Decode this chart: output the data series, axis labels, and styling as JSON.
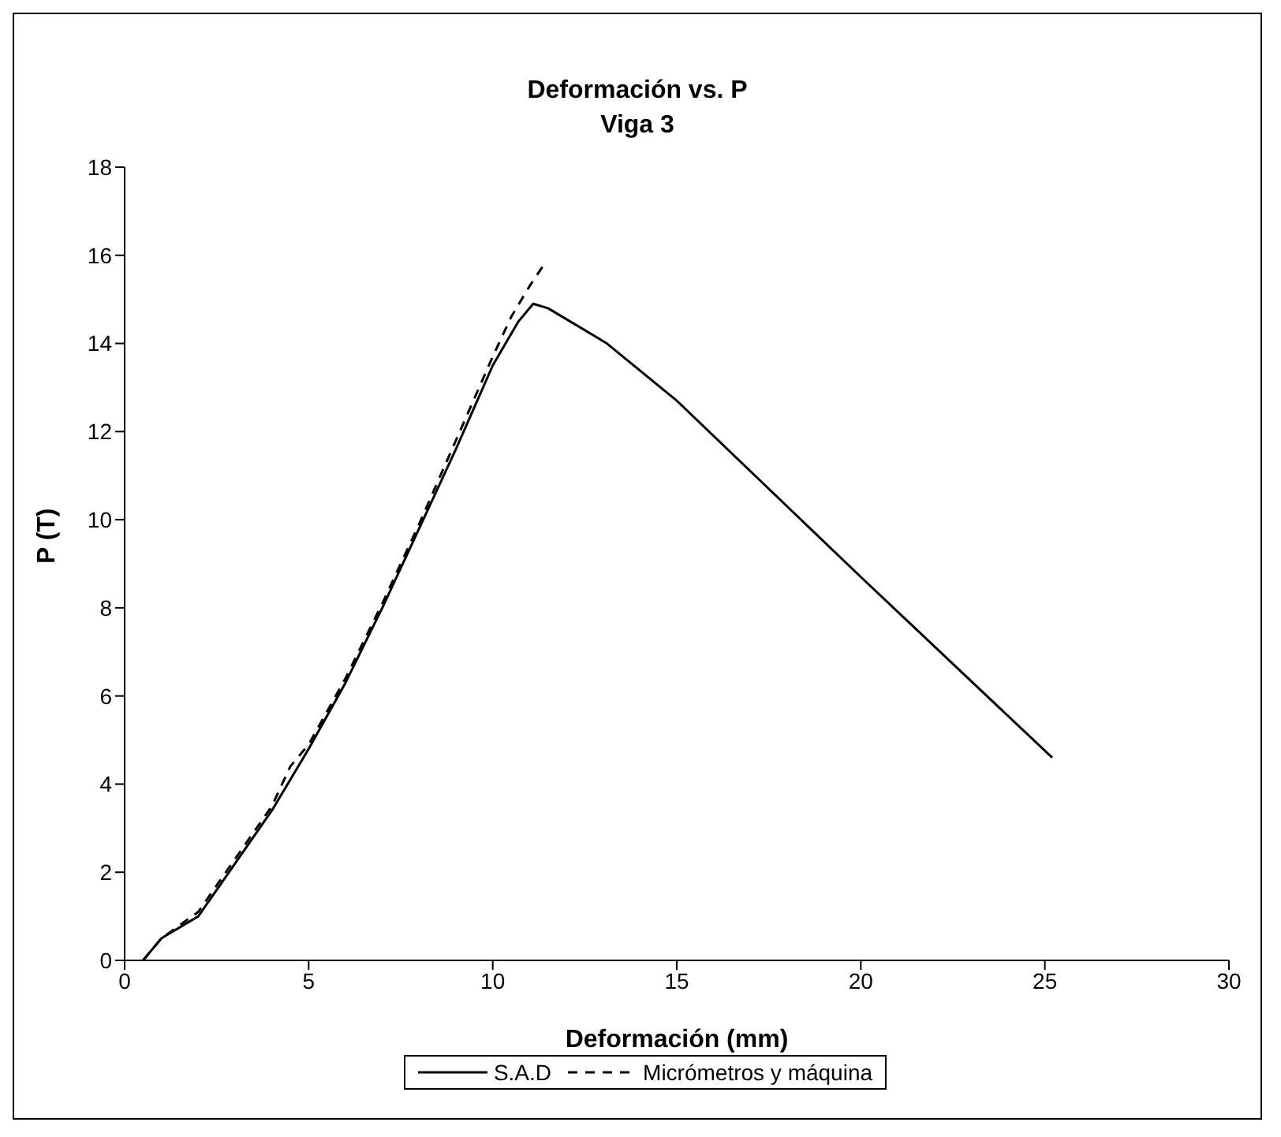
{
  "chart_data": {
    "type": "line",
    "title": "Deformación vs. P",
    "subtitle": "Viga 3",
    "xlabel": "Deformación (mm)",
    "ylabel": "P (T)",
    "xlim": [
      0,
      30
    ],
    "xticks": [
      0,
      5,
      10,
      15,
      20,
      25,
      30
    ],
    "ylim": [
      0,
      18
    ],
    "yticks": [
      0,
      2,
      4,
      6,
      8,
      10,
      12,
      14,
      16,
      18
    ],
    "grid": false,
    "legend": "bottom",
    "marker": "none",
    "series": [
      {
        "name": "S.A.D",
        "color": "#000000",
        "line_style": "solid",
        "x": [
          0.5,
          1,
          2,
          3,
          4,
          5,
          6,
          7,
          8,
          9,
          10,
          10.7,
          11.1,
          11.5,
          13.1,
          15,
          20,
          25.2
        ],
        "values": [
          0,
          0.5,
          1,
          2.2,
          3.4,
          4.8,
          6.3,
          8,
          9.8,
          11.6,
          13.5,
          14.5,
          14.9,
          14.8,
          14,
          12.7,
          8.7,
          4.6
        ]
      },
      {
        "name": "Micrómetros y máquina",
        "color": "#000000",
        "line_style": "dashed",
        "x": [
          0.5,
          1,
          2,
          3,
          4,
          4.5,
          5,
          6,
          7,
          8,
          9,
          10,
          10.5,
          11,
          11.4
        ],
        "values": [
          0,
          0.5,
          1.1,
          2.3,
          3.5,
          4.4,
          4.9,
          6.4,
          8.1,
          9.9,
          11.8,
          13.7,
          14.6,
          15.3,
          15.8
        ]
      }
    ]
  }
}
